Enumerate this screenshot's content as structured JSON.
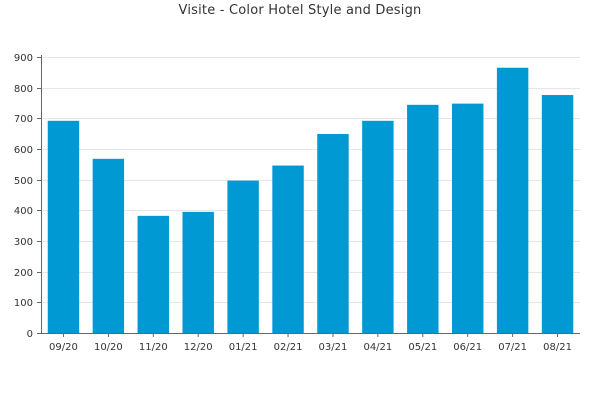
{
  "chart_data": {
    "type": "bar",
    "title": "Visite - Color Hotel Style and Design",
    "xlabel": "",
    "ylabel": "",
    "categories": [
      "09/20",
      "10/20",
      "11/20",
      "12/20",
      "01/21",
      "02/21",
      "03/21",
      "04/21",
      "05/21",
      "06/21",
      "07/21",
      "08/21"
    ],
    "values": [
      692,
      568,
      382,
      395,
      497,
      546,
      649,
      692,
      744,
      748,
      865,
      776
    ],
    "ylim": [
      0,
      900
    ],
    "yticks": [
      0,
      100,
      200,
      300,
      400,
      500,
      600,
      700,
      800,
      900
    ],
    "grid": true,
    "legend": "none",
    "bar_color": "#0099d4"
  }
}
